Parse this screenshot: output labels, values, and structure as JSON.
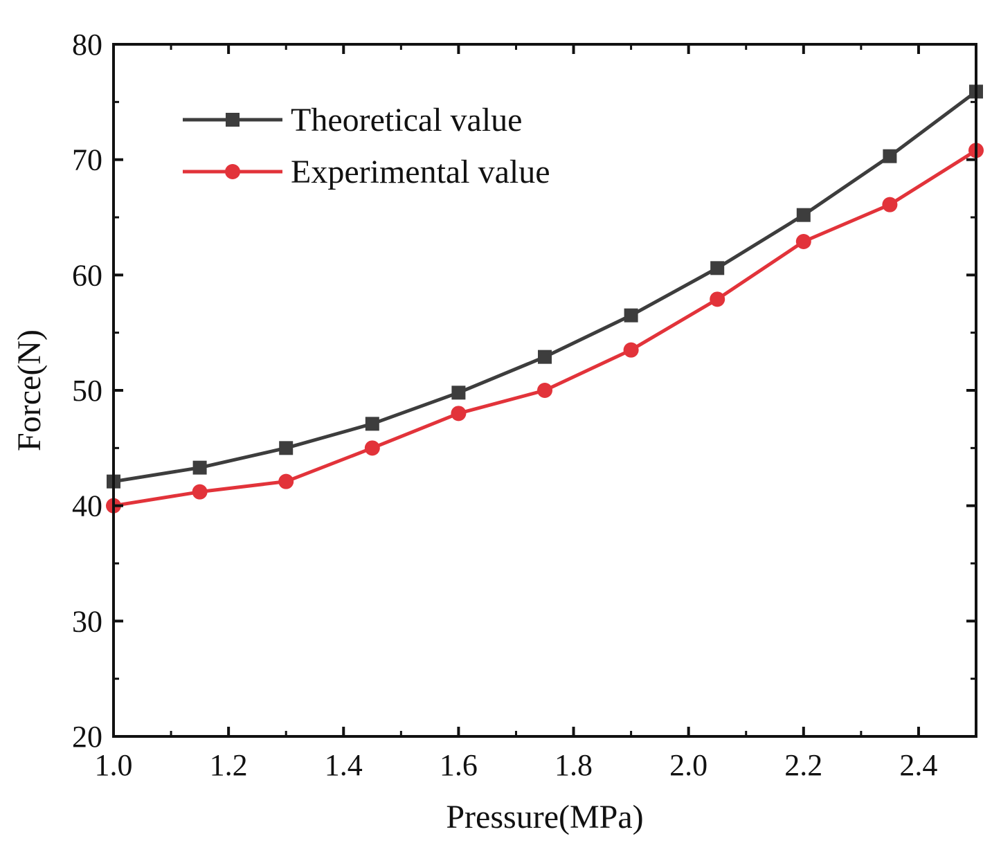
{
  "chart_data": {
    "type": "line",
    "title": "",
    "xlabel": "Pressure(MPa)",
    "ylabel": "Force(N)",
    "xlim": [
      1.0,
      2.5
    ],
    "ylim": [
      20,
      80
    ],
    "x_ticks": [
      1.0,
      1.2,
      1.4,
      1.6,
      1.8,
      2.0,
      2.2,
      2.4
    ],
    "x_tick_labels": [
      "1.0",
      "1.2",
      "1.4",
      "1.6",
      "1.8",
      "2.0",
      "2.2",
      "2.4"
    ],
    "y_ticks": [
      20,
      30,
      40,
      50,
      60,
      70,
      80
    ],
    "y_tick_labels": [
      "20",
      "30",
      "40",
      "50",
      "60",
      "70",
      "80"
    ],
    "x": [
      1.0,
      1.15,
      1.3,
      1.45,
      1.6,
      1.75,
      1.9,
      2.05,
      2.2,
      2.35,
      2.5
    ],
    "grid": false,
    "legend_position": "top-left",
    "series": [
      {
        "name": "Theoretical value",
        "marker": "square",
        "color": "#3d3d3d",
        "values": [
          42.1,
          43.3,
          45.0,
          47.1,
          49.8,
          52.9,
          56.5,
          60.6,
          65.2,
          70.3,
          75.9
        ]
      },
      {
        "name": "Experimental value",
        "marker": "circle",
        "color": "#e2333a",
        "values": [
          40.0,
          41.2,
          42.1,
          45.0,
          48.0,
          50.0,
          53.5,
          57.9,
          62.9,
          66.1,
          70.8
        ]
      }
    ]
  }
}
